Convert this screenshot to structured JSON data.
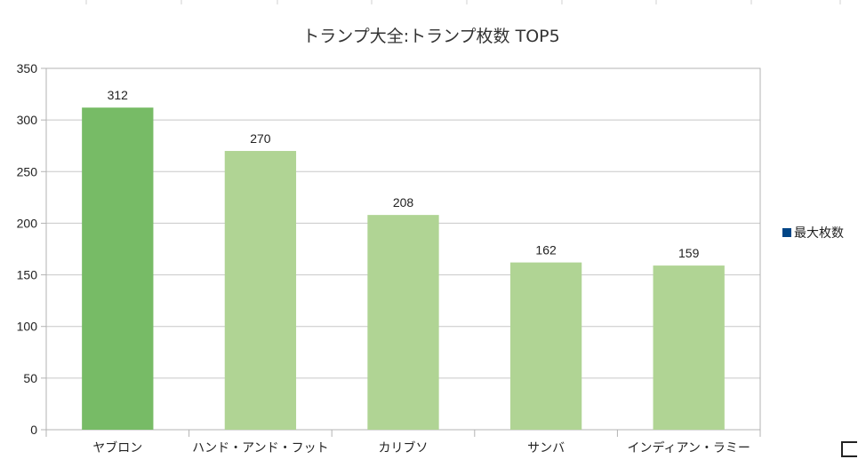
{
  "chart_data": {
    "type": "bar",
    "title": "トランプ大全:トランプ枚数 TOP5",
    "categories": [
      "ヤブロン",
      "ハンド・アンド・フット",
      "カリブソ",
      "サンバ",
      "インディアン・ラミー"
    ],
    "series": [
      {
        "name": "最大枚数",
        "values": [
          312,
          270,
          208,
          162,
          159
        ]
      }
    ],
    "ylim": [
      0,
      350
    ],
    "yticks": [
      0,
      50,
      100,
      150,
      200,
      250,
      300,
      350
    ],
    "grid": true,
    "legend_position": "right",
    "colors": {
      "highlight_bar": "#77bb66",
      "bar": "#b0d494",
      "legend_swatch": "#004586",
      "grid": "#c8c8c8",
      "axis": "#b3b3b3"
    }
  }
}
